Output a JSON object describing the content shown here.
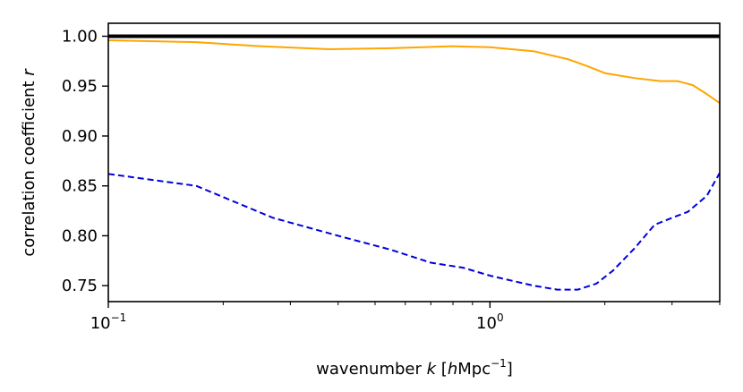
{
  "chart_data": {
    "type": "line",
    "xlabel": {
      "main": "wavenumber ",
      "var": "k",
      "unit_open": " [",
      "unit_var": "h",
      "unit_text": "Mpc",
      "unit_sup": "−1",
      "unit_close": "]"
    },
    "ylabel": {
      "main": "correlation coefficient ",
      "var": "r"
    },
    "xscale": "log",
    "xlim": [
      0.1,
      4.0
    ],
    "ylim": [
      0.734,
      1.013
    ],
    "x_ticks": [
      {
        "value": 0.1,
        "base": "10",
        "exp": "−1"
      },
      {
        "value": 1.0,
        "base": "10",
        "exp": "0"
      }
    ],
    "y_ticks": [
      {
        "value": 0.75,
        "label": "0.75"
      },
      {
        "value": 0.8,
        "label": "0.80"
      },
      {
        "value": 0.85,
        "label": "0.85"
      },
      {
        "value": 0.9,
        "label": "0.90"
      },
      {
        "value": 0.95,
        "label": "0.95"
      },
      {
        "value": 1.0,
        "label": "1.00"
      }
    ],
    "series": [
      {
        "color": "#000000",
        "style": "solid",
        "width": 4,
        "x": [
          0.1,
          4.0
        ],
        "y": [
          1.0,
          1.0
        ]
      },
      {
        "color": "#ffa500",
        "style": "solid",
        "width": 2,
        "x": [
          0.1,
          0.17,
          0.25,
          0.38,
          0.55,
          0.8,
          1.0,
          1.3,
          1.6,
          1.8,
          2.0,
          2.4,
          2.8,
          3.1,
          3.4,
          3.7,
          4.0
        ],
        "y": [
          0.996,
          0.994,
          0.99,
          0.987,
          0.988,
          0.99,
          0.989,
          0.985,
          0.977,
          0.97,
          0.963,
          0.958,
          0.955,
          0.955,
          0.951,
          0.942,
          0.933
        ]
      },
      {
        "color": "#0000dd",
        "style": "dashed",
        "width": 2,
        "x": [
          0.1,
          0.17,
          0.27,
          0.4,
          0.55,
          0.7,
          0.85,
          1.0,
          1.3,
          1.5,
          1.7,
          1.9,
          2.1,
          2.4,
          2.7,
          3.0,
          3.3,
          3.7,
          4.0
        ],
        "y": [
          0.862,
          0.85,
          0.818,
          0.8,
          0.786,
          0.773,
          0.768,
          0.76,
          0.75,
          0.746,
          0.746,
          0.752,
          0.765,
          0.788,
          0.811,
          0.818,
          0.824,
          0.84,
          0.863
        ]
      }
    ]
  }
}
